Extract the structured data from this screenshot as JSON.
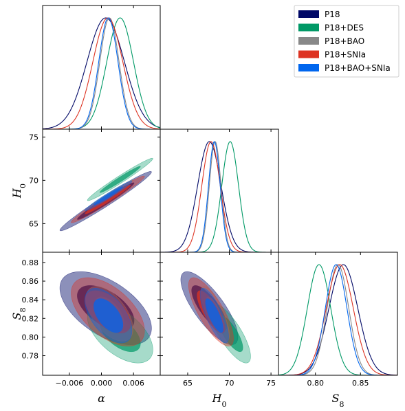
{
  "chart_data": {
    "type": "triangle-corner",
    "params": [
      {
        "key": "alpha",
        "label": "α",
        "sub": "",
        "range": [
          -0.011,
          0.011
        ],
        "ticks": [
          -0.006,
          0.0,
          0.006
        ],
        "tick_labels": [
          "−0.006",
          "0.000",
          "0.006"
        ]
      },
      {
        "key": "H0",
        "label": "H",
        "sub": "0",
        "range": [
          61.7,
          75.9
        ],
        "ticks": [
          65,
          70,
          75
        ],
        "tick_labels": [
          "65",
          "70",
          "75"
        ]
      },
      {
        "key": "S8",
        "label": "S",
        "sub": "8",
        "range": [
          0.759,
          0.891
        ],
        "ticks": [
          0.78,
          0.8,
          0.82,
          0.84,
          0.86,
          0.88
        ],
        "tick_labels": [
          "0.78",
          "0.80",
          "0.82",
          "0.84",
          "0.86",
          "0.88"
        ]
      }
    ],
    "s8_diag_ticks": [
      0.8,
      0.85
    ],
    "s8_diag_tick_labels": [
      "0.80",
      "0.85"
    ],
    "legend": {
      "placement": "top-right"
    },
    "series": [
      {
        "name": "P18",
        "color": "#000866",
        "fill_alpha": 0.45,
        "mean": {
          "alpha": 0.0008,
          "H0": 67.6,
          "S8": 0.831
        },
        "sd": {
          "alpha": 0.0035,
          "H0": 1.4,
          "S8": 0.016
        },
        "corr": {
          "alpha_H0": 0.98,
          "alpha_S8": -0.55,
          "H0_S8": -0.78
        }
      },
      {
        "name": "P18+DES",
        "color": "#009966",
        "fill_alpha": 0.35,
        "mean": {
          "alpha": 0.0035,
          "H0": 70.1,
          "S8": 0.804
        },
        "sd": {
          "alpha": 0.0025,
          "H0": 1.0,
          "S8": 0.013
        },
        "corr": {
          "alpha_H0": 0.98,
          "alpha_S8": -0.55,
          "H0_S8": -0.78
        }
      },
      {
        "name": "P18+BAO",
        "color": "#888888",
        "fill_alpha": 0.45,
        "mean": {
          "alpha": 0.0015,
          "H0": 68.3,
          "S8": 0.825
        },
        "sd": {
          "alpha": 0.0018,
          "H0": 0.7,
          "S8": 0.012
        },
        "corr": {
          "alpha_H0": 0.98,
          "alpha_S8": -0.55,
          "H0_S8": -0.78
        }
      },
      {
        "name": "P18+SNIa",
        "color": "#dd3322",
        "fill_alpha": 0.4,
        "mean": {
          "alpha": 0.0012,
          "H0": 67.8,
          "S8": 0.827
        },
        "sd": {
          "alpha": 0.0028,
          "H0": 1.1,
          "S8": 0.015
        },
        "corr": {
          "alpha_H0": 0.98,
          "alpha_S8": -0.55,
          "H0_S8": -0.78
        }
      },
      {
        "name": "P18+BAO+SNIa",
        "color": "#0066ee",
        "fill_alpha": 0.4,
        "mean": {
          "alpha": 0.0013,
          "H0": 68.2,
          "S8": 0.823
        },
        "sd": {
          "alpha": 0.0018,
          "H0": 0.7,
          "S8": 0.012
        },
        "corr": {
          "alpha_H0": 0.98,
          "alpha_S8": -0.55,
          "H0_S8": -0.78
        }
      }
    ]
  }
}
